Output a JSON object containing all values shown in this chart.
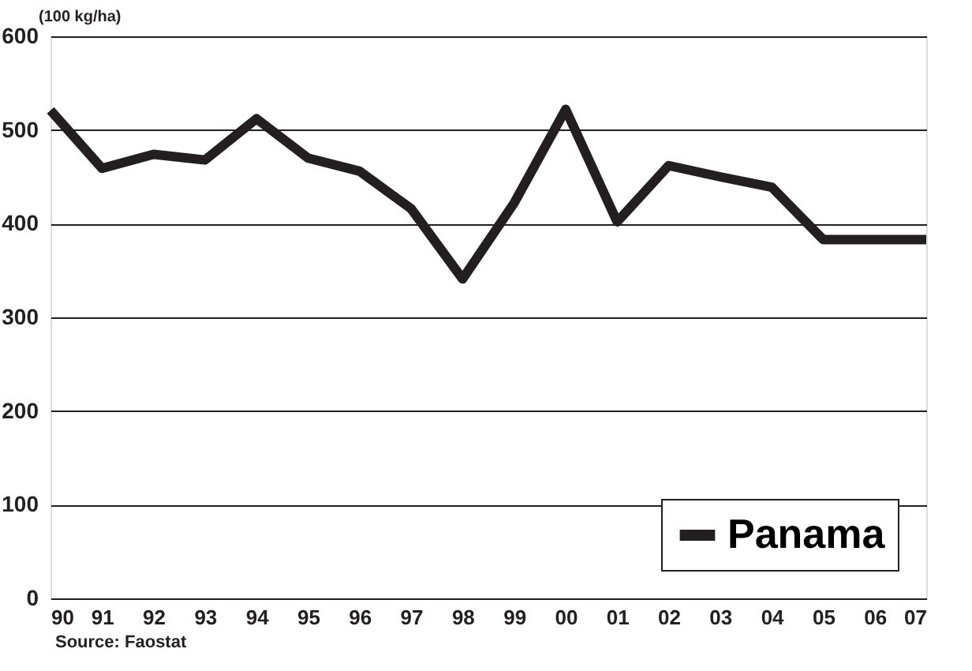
{
  "chart_data": {
    "type": "line",
    "categories": [
      "90",
      "91",
      "92",
      "93",
      "94",
      "95",
      "96",
      "97",
      "98",
      "99",
      "00",
      "01",
      "02",
      "03",
      "04",
      "05",
      "06",
      "07"
    ],
    "series": [
      {
        "name": "Panama",
        "color": "#231f20",
        "values": [
          521,
          459,
          474,
          468,
          512,
          470,
          456,
          416,
          341,
          422,
          522,
          402,
          462,
          450,
          439,
          383,
          383,
          383
        ]
      }
    ],
    "ylabel": "(100 kg/ha)",
    "ylim": [
      0,
      600
    ],
    "yticks": [
      0,
      100,
      200,
      300,
      400,
      500,
      600
    ],
    "grid": "y",
    "legend": "bottom right",
    "annotations": [
      "Source: Faostat"
    ]
  }
}
